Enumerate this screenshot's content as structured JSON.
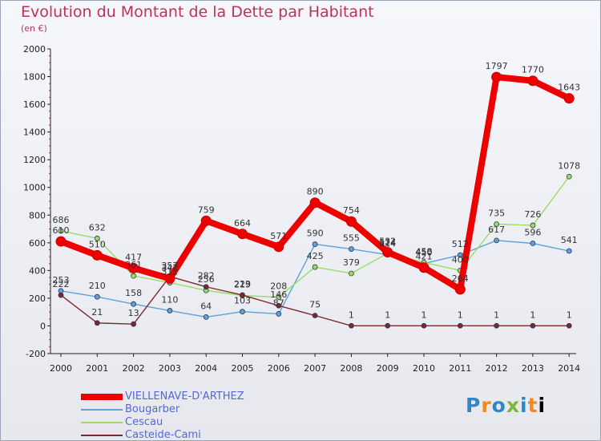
{
  "header": {
    "title": "Evolution du Montant de la Dette par Habitant",
    "subtitle": "(en €)"
  },
  "logo": {
    "text": "Proxiti",
    "colors": [
      "#2f86c8",
      "#f08a1c",
      "#7cb83c"
    ]
  },
  "chart_data": {
    "type": "line",
    "title": "Evolution du Montant de la Dette par Habitant",
    "subtitle": "(en €)",
    "xlabel": "",
    "ylabel": "",
    "x": [
      "2000",
      "2001",
      "2002",
      "2003",
      "2004",
      "2005",
      "2006",
      "2007",
      "2008",
      "2009",
      "2010",
      "2011",
      "2012",
      "2013",
      "2014"
    ],
    "ylim": [
      -200,
      2000
    ],
    "yticks": [
      -200,
      0,
      200,
      400,
      600,
      800,
      1000,
      1200,
      1400,
      1600,
      1800,
      2000
    ],
    "grid": false,
    "legend": "bottom-left",
    "series": [
      {
        "name": "VIELLENAVE-D'ARTHEZ",
        "color": "#ee0000",
        "values": [
          610,
          510,
          417,
          342,
          759,
          664,
          571,
          890,
          754,
          532,
          421,
          264,
          1797,
          1770,
          1643
        ]
      },
      {
        "name": "Bougarber",
        "color": "#5ea2d9",
        "values": [
          253,
          210,
          158,
          110,
          64,
          103,
          87,
          590,
          555,
          514,
          450,
          512,
          617,
          596,
          541
        ]
      },
      {
        "name": "Cescau",
        "color": "#99dd66",
        "values": [
          686,
          632,
          361,
          312,
          256,
          219,
          208,
          425,
          379,
          524,
          458,
          400,
          735,
          726,
          1078
        ]
      },
      {
        "name": "Casteide-Cami",
        "color": "#7a2a2a",
        "values": [
          222,
          21,
          13,
          357,
          282,
          223,
          146,
          75,
          1,
          1,
          1,
          1,
          1,
          1,
          1
        ]
      }
    ]
  }
}
